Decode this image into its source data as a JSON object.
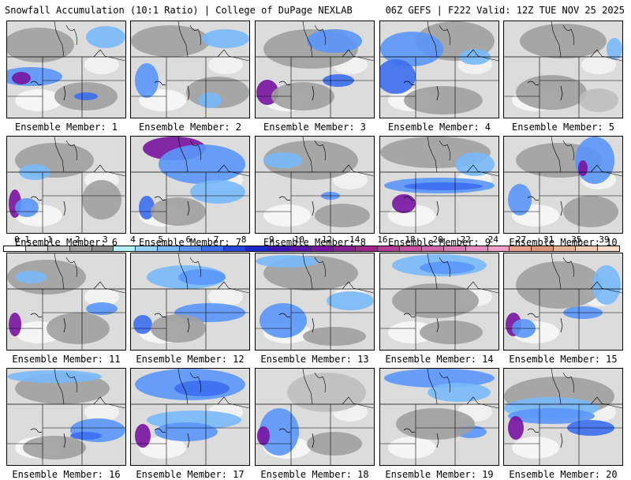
{
  "header": {
    "left": "Snowfall Accumulation (10:1 Ratio) | College of DuPage NEXLAB",
    "right": "06Z GEFS | F222 Valid: 12Z TUE NOV 25 2025"
  },
  "colorbar": {
    "tick_labels": [
      "0.1",
      "1",
      "2",
      "3",
      "4",
      "5",
      "6",
      "7",
      "8",
      "9",
      "10",
      "12",
      "14",
      "16",
      "18",
      "20",
      "22",
      "24",
      "27",
      "31",
      "35",
      "39"
    ],
    "colors": [
      "#ffffff",
      "#dcdcdc",
      "#bebebe",
      "#a0a0a0",
      "#8c8c8c",
      "#b4f0fa",
      "#96d2fa",
      "#78b9fa",
      "#5a96fa",
      "#3c6ef0",
      "#2846dc",
      "#1e28c8",
      "#3c14b4",
      "#5a14aa",
      "#7814a0",
      "#8c1e96",
      "#a0288c",
      "#b43c96",
      "#c850a0",
      "#d264aa",
      "#dc78b4",
      "#e68cbe",
      "#f0a0c8",
      "#e6a08c",
      "#dc9678",
      "#e6b496",
      "#f0c8b4",
      "#f5dcc8"
    ]
  },
  "panels": [
    {
      "label": "Ensemble Member: 1"
    },
    {
      "label": "Ensemble Member: 2"
    },
    {
      "label": "Ensemble Member: 3"
    },
    {
      "label": "Ensemble Member: 4"
    },
    {
      "label": "Ensemble Member: 5"
    },
    {
      "label": "Ensemble Member: 6"
    },
    {
      "label": "Ensemble Member: 7"
    },
    {
      "label": "Ensemble Member: 8"
    },
    {
      "label": "Ensemble Member: 9"
    },
    {
      "label": "Ensemble Member: 10"
    },
    {
      "label": "Ensemble Member: 11"
    },
    {
      "label": "Ensemble Member: 12"
    },
    {
      "label": "Ensemble Member: 13"
    },
    {
      "label": "Ensemble Member: 14"
    },
    {
      "label": "Ensemble Member: 15"
    },
    {
      "label": "Ensemble Member: 16"
    },
    {
      "label": "Ensemble Member: 17"
    },
    {
      "label": "Ensemble Member: 18"
    },
    {
      "label": "Ensemble Member: 19"
    },
    {
      "label": "Ensemble Member: 20"
    }
  ]
}
